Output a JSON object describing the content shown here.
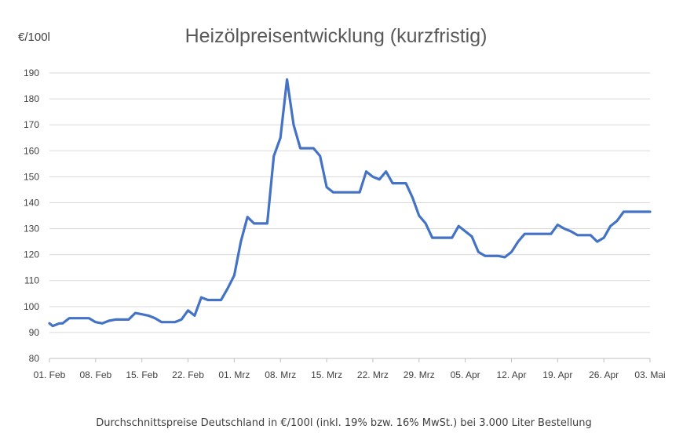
{
  "chart_data": {
    "type": "line",
    "title": "Heizölpreisentwicklung (kurzfristig)",
    "unit_label": "€/100l",
    "footnote": "Durchschnittspreise Deutschland in €/100l (inkl. 19% bzw. 16%  MwSt.) bei 3.000 Liter Bestellung",
    "xlabel": "",
    "ylabel": "",
    "ylim": [
      80,
      190
    ],
    "y_ticks": [
      80,
      90,
      100,
      110,
      120,
      130,
      140,
      150,
      160,
      170,
      180,
      190
    ],
    "x_ticks": [
      "01. Feb",
      "08. Feb",
      "15. Feb",
      "22. Feb",
      "01. Mrz",
      "08. Mrz",
      "15. Mrz",
      "22. Mrz",
      "29. Mrz",
      "05. Apr",
      "12. Apr",
      "19. Apr",
      "26. Apr",
      "03. Mai"
    ],
    "grid": true,
    "legend": "none",
    "color": "#4472c4",
    "series": [
      {
        "name": "",
        "x": [
          0,
          0.5,
          1,
          1.5,
          2,
          3,
          4,
          5,
          6,
          7,
          8,
          9,
          10,
          11,
          12,
          13,
          14,
          15,
          16,
          17,
          18,
          19,
          20,
          21,
          22,
          23,
          24,
          25,
          26,
          27,
          28,
          29,
          30,
          31,
          32,
          33,
          34,
          35,
          36,
          37,
          38,
          39,
          40,
          41,
          42,
          43,
          44,
          45,
          46,
          47,
          48,
          49,
          50,
          51,
          52,
          53,
          54,
          55,
          56,
          57,
          58,
          59,
          60,
          61,
          62,
          63,
          64,
          65,
          66,
          67,
          68,
          69,
          70,
          71,
          72,
          73,
          74,
          75,
          76,
          77,
          78,
          79,
          80,
          81,
          82,
          83,
          84,
          85,
          86,
          87,
          88,
          89,
          90,
          91
        ],
        "values": [
          93.5,
          92.5,
          93,
          93.5,
          93.5,
          95.5,
          95.5,
          95.5,
          95.5,
          94,
          93.5,
          94.5,
          95,
          95,
          95,
          97.5,
          97,
          96.5,
          95.5,
          94,
          94,
          94,
          95,
          98.5,
          96.5,
          103.5,
          102.5,
          102.5,
          102.5,
          107,
          112,
          125,
          134.5,
          132,
          132,
          132,
          158,
          165,
          187.5,
          170,
          161,
          161,
          161,
          158,
          146,
          144,
          144,
          144,
          144,
          144,
          152,
          150,
          149,
          152,
          147.5,
          147.5,
          147.5,
          142,
          135,
          132,
          126.5,
          126.5,
          126.5,
          126.5,
          131,
          129,
          127,
          121,
          119.5,
          119.5,
          119.5,
          119,
          121,
          125,
          128,
          128,
          128,
          128,
          128,
          131.5,
          130,
          129,
          127.5,
          127.5,
          127.5,
          125,
          126.5,
          131,
          133,
          136.5,
          136.5,
          136.5,
          136.5,
          136.5
        ]
      }
    ]
  }
}
